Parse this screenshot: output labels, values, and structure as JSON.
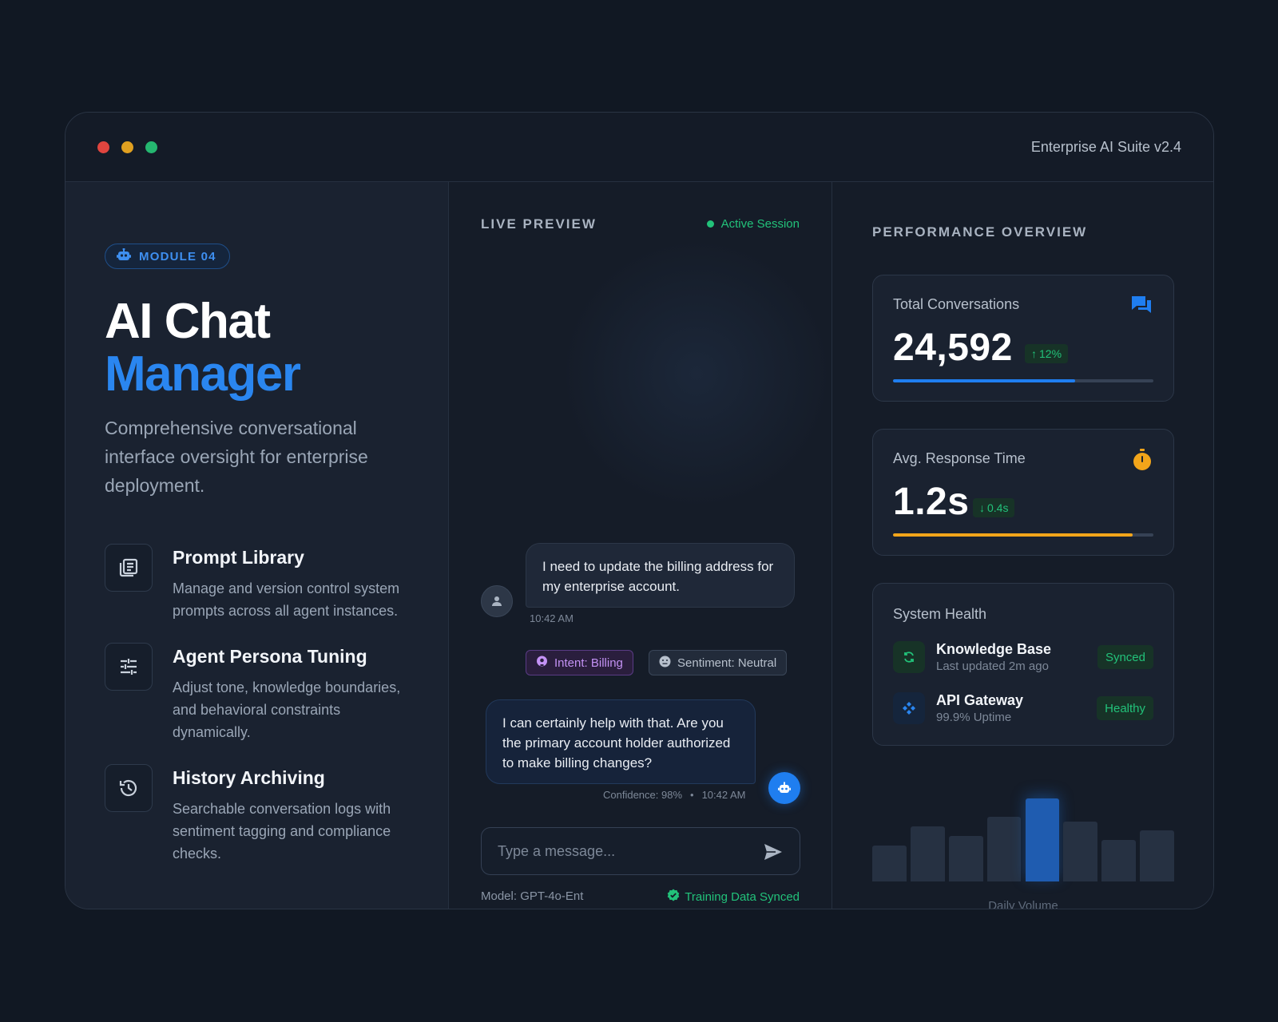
{
  "window": {
    "app_title": "Enterprise AI Suite v2.4",
    "traffic_lights": [
      "#e0453f",
      "#e0a020",
      "#25b770"
    ]
  },
  "hero": {
    "module_badge": "MODULE 04",
    "module_icon": "robot-icon",
    "title_line1": "AI Chat",
    "title_line2": "Manager",
    "description": "Comprehensive conversational interface oversight for enterprise deployment."
  },
  "features": [
    {
      "title": "Prompt Library",
      "description": "Manage and version control system prompts across all agent instances.",
      "icon": "library-icon"
    },
    {
      "title": "Agent Persona Tuning",
      "description": "Adjust tone, knowledge boundaries, and behavioral constraints dynamically.",
      "icon": "sliders-icon"
    },
    {
      "title": "History Archiving",
      "description": "Searchable conversation logs with sentiment tagging and compliance checks.",
      "icon": "history-icon"
    }
  ],
  "preview": {
    "label": "LIVE PREVIEW",
    "status": "Active Session",
    "user_message": "I need to update the billing address for my enterprise account.",
    "user_time": "10:42 AM",
    "tag_intent": "Intent: Billing",
    "tag_sentiment": "Sentiment: Neutral",
    "bot_message": "I can certainly help with that. Are you the primary account holder authorized to make billing changes?",
    "bot_confidence": "Confidence: 98%",
    "bot_separator": "•",
    "bot_time": "10:42 AM",
    "input_placeholder": "Type a message...",
    "model": "Model: GPT-4o-Ent",
    "sync_status": "Training Data Synced"
  },
  "performance": {
    "label": "PERFORMANCE OVERVIEW",
    "total_conversations": {
      "label": "Total Conversations",
      "value": "24,592",
      "delta": "12%",
      "progress": 0.7,
      "color": "#1f7ef0",
      "icon": "chat-bubbles-icon"
    },
    "response_time": {
      "label": "Avg. Response Time",
      "value": "1.2s",
      "delta": "0.4s",
      "progress": 0.92,
      "color": "#f2a51a",
      "icon": "stopwatch-icon"
    },
    "system_health": {
      "title": "System Health",
      "items": [
        {
          "name": "Knowledge Base",
          "detail": "Last updated 2m ago",
          "status": "Synced",
          "icon": "sync-icon"
        },
        {
          "name": "API Gateway",
          "detail": "99.9% Uptime",
          "status": "Healthy",
          "icon": "network-icon"
        }
      ]
    }
  },
  "chart_data": {
    "type": "bar",
    "title": "",
    "xlabel": "Daily Volume",
    "ylabel": "",
    "values": [
      42,
      64,
      53,
      75,
      96,
      69,
      48,
      59
    ],
    "highlight_index": 4,
    "ylim": [
      0,
      100
    ],
    "grid": false
  }
}
